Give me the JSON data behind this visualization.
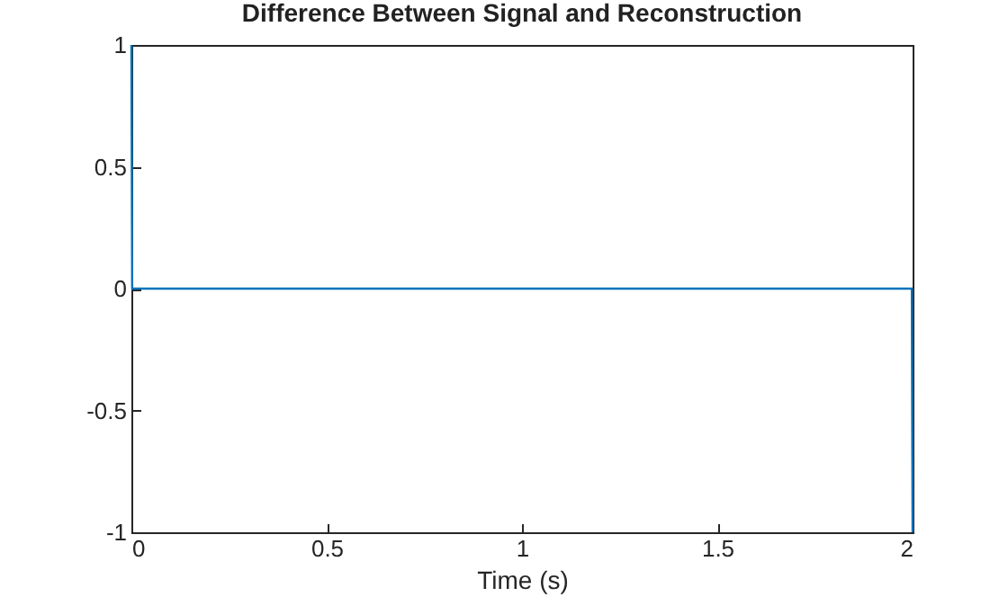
{
  "chart_data": {
    "type": "line",
    "title": "Difference Between Signal and Reconstruction",
    "xlabel": "Time (s)",
    "x": [
      0,
      0.002,
      1.998,
      2
    ],
    "series": [
      {
        "color": "#0072bd",
        "values": [
          1,
          0,
          0,
          -1
        ]
      }
    ],
    "xlim": [
      0,
      2
    ],
    "xticks": [
      0,
      0.5,
      1,
      1.5,
      2
    ],
    "ylim": [
      -1,
      1
    ],
    "yticks": [
      -1,
      -0.5,
      0,
      0.5,
      1
    ],
    "grid": false,
    "legend": false
  }
}
